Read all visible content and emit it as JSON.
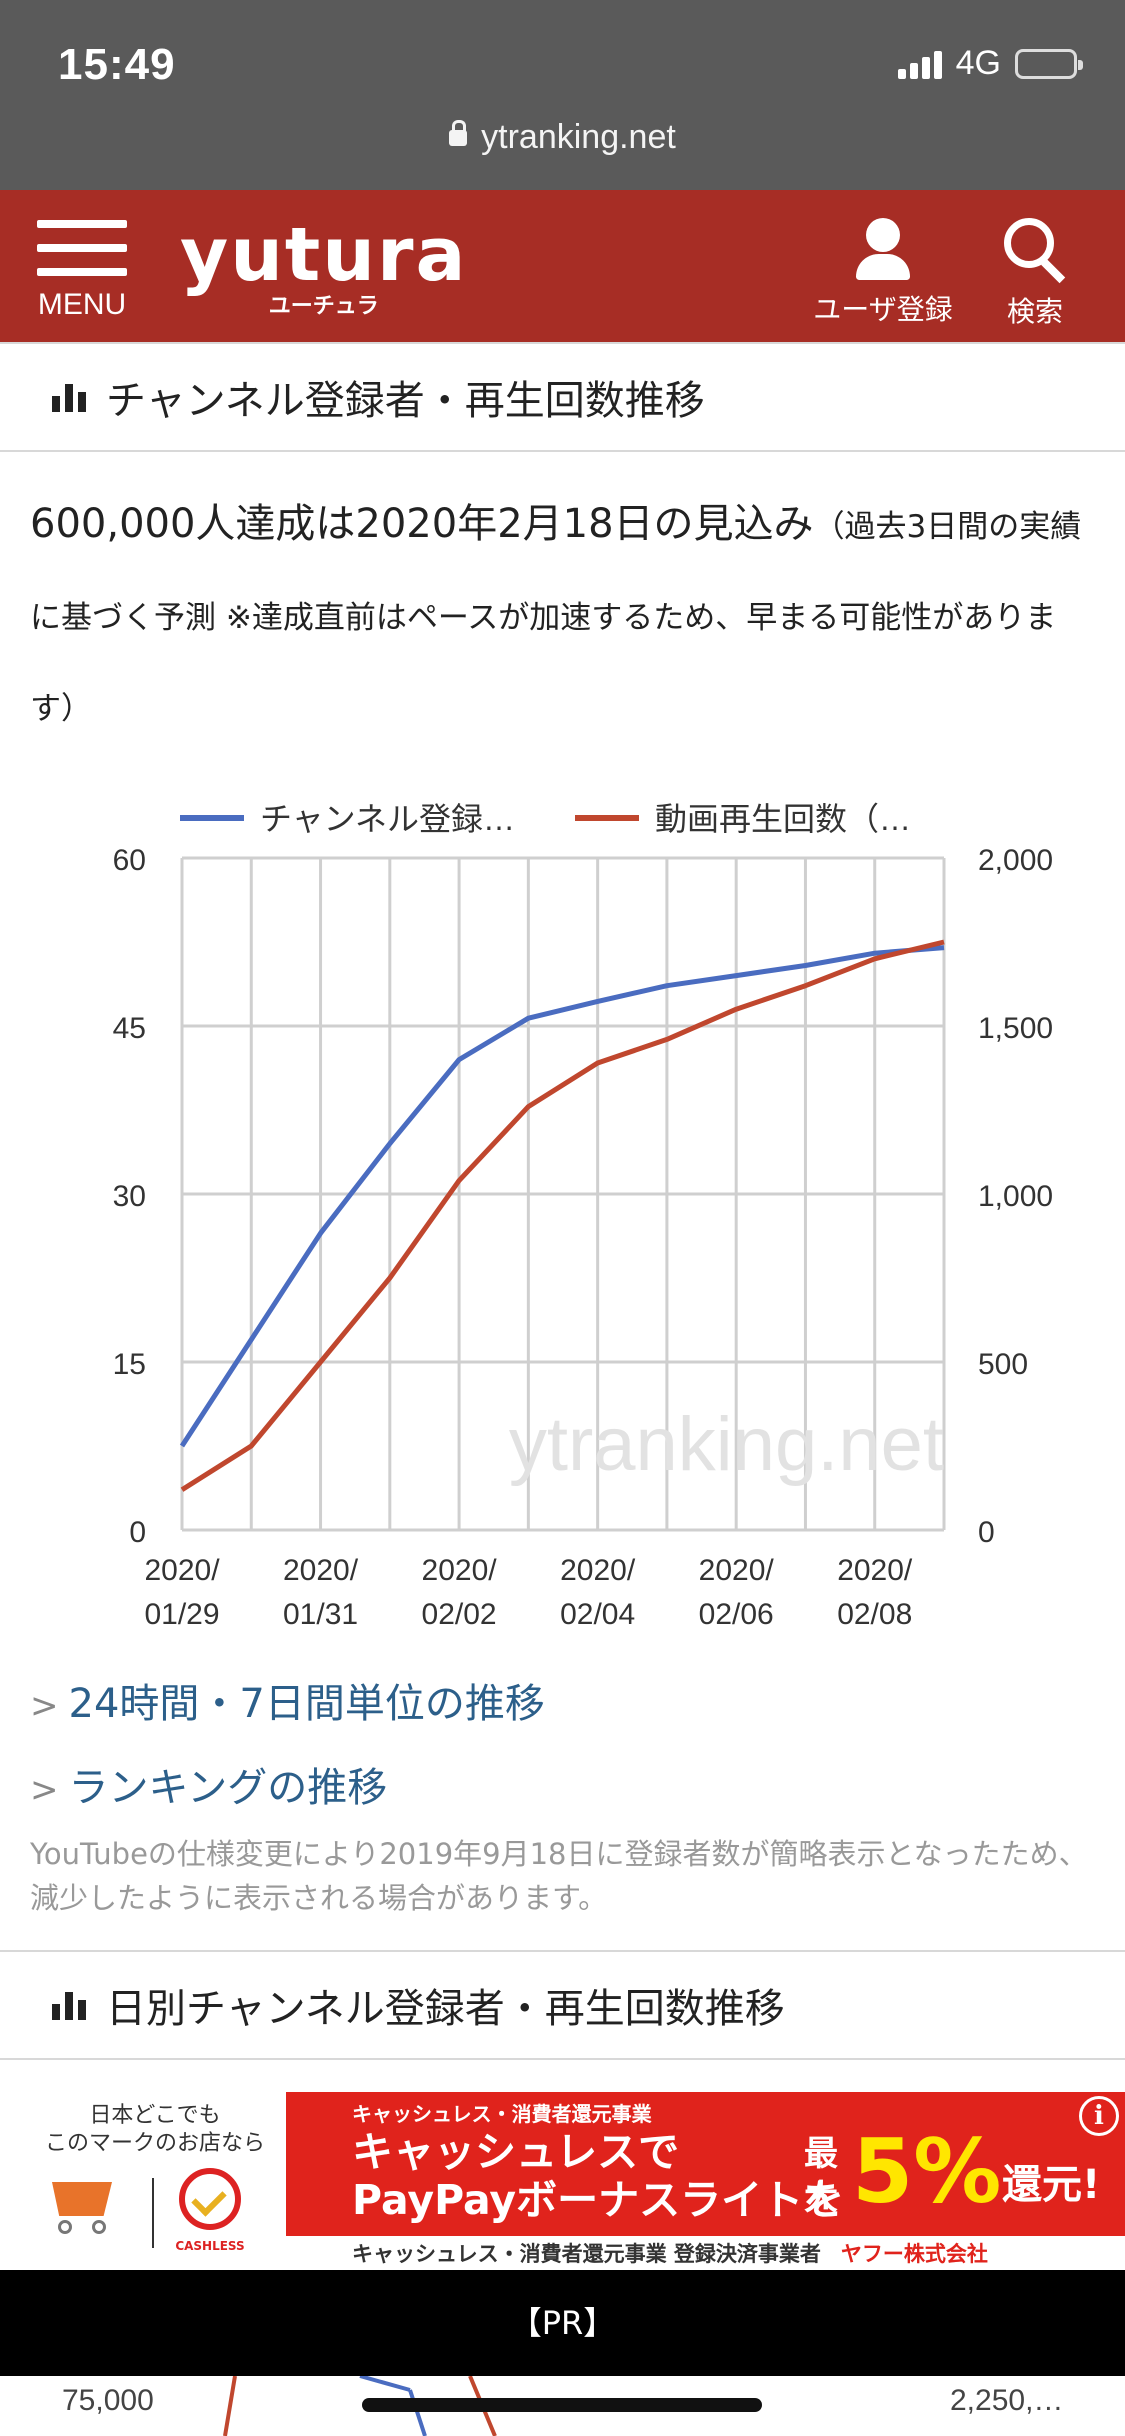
{
  "status_bar": {
    "time": "15:49",
    "network": "4G",
    "url": "ytranking.net"
  },
  "header": {
    "menu_label": "MENU",
    "logo_text": "yutura",
    "logo_sub": "ユーチュラ",
    "user_label": "ユーザ登録",
    "search_label": "検索",
    "bg_color": "#a72d25"
  },
  "section1": {
    "title": "チャンネル登録者・再生回数推移"
  },
  "prediction": {
    "main": "600,000人達成は2020年2月18日の見込み",
    "note": "（過去3日間の実績に基づく予測 ※達成直前はペースが加速するため、早まる可能性があります）"
  },
  "chart_data": {
    "type": "line",
    "legend": [
      "チャンネル登録…",
      "動画再生回数（…"
    ],
    "legend_position": "top",
    "watermark": "ytranking.net",
    "x": [
      "2020-01-29",
      "2020-01-30",
      "2020-01-31",
      "2020-02-01",
      "2020-02-02",
      "2020-02-03",
      "2020-02-04",
      "2020-02-05",
      "2020-02-06",
      "2020-02-07",
      "2020-02-08",
      "2020-02-09"
    ],
    "x_tick_labels": [
      "2020/\n01/29",
      "2020/\n01/31",
      "2020/\n02/02",
      "2020/\n02/04",
      "2020/\n02/06",
      "2020/\n02/08"
    ],
    "y_left_ticks": [
      "60",
      "45",
      "30",
      "15",
      "0"
    ],
    "y_right_ticks": [
      "2,000",
      "1,500",
      "1,000",
      "500",
      "0"
    ],
    "ylim_left": [
      0,
      60
    ],
    "ylim_right": [
      0,
      2000
    ],
    "grid": true,
    "series": [
      {
        "name": "チャンネル登録…",
        "axis": "left",
        "color": "#4a6cc0",
        "values": [
          7.5,
          17.0,
          26.5,
          34.5,
          42.0,
          45.7,
          47.2,
          48.6,
          49.5,
          50.4,
          51.5,
          52.0
        ]
      },
      {
        "name": "動画再生回数（…",
        "axis": "right",
        "color": "#c0472e",
        "values": [
          120,
          250,
          500,
          750,
          1040,
          1260,
          1390,
          1460,
          1550,
          1620,
          1700,
          1750
        ]
      }
    ]
  },
  "links": {
    "item1": "24時間・7日間単位の推移",
    "item2": "ランキングの推移",
    "gt": ">"
  },
  "notice": "YouTubeの仕様変更により2019年9月18日に登録者数が簡略表示となったため、減少したように表示される場合があります。",
  "section2": {
    "title": "日別チャンネル登録者・再生回数推移"
  },
  "ad": {
    "left_text": "日本どこでも\nこのマークのお店なら",
    "cashless_label": "CASHLESS",
    "top_text": "キャッシュレス・消費者還元事業",
    "main_line1": "キャッシュレスで",
    "main_line2": "PayPayボーナスライトを",
    "max_text": "最大",
    "percent": "5%",
    "return_text": "還元!",
    "bottom_text": "キャッシュレス・消費者還元事業 登録決済事業者",
    "company": "ヤフー株式会社",
    "info": "i",
    "pr": "【PR】"
  },
  "peek": {
    "left": "75,000",
    "right": "2,250,…"
  }
}
